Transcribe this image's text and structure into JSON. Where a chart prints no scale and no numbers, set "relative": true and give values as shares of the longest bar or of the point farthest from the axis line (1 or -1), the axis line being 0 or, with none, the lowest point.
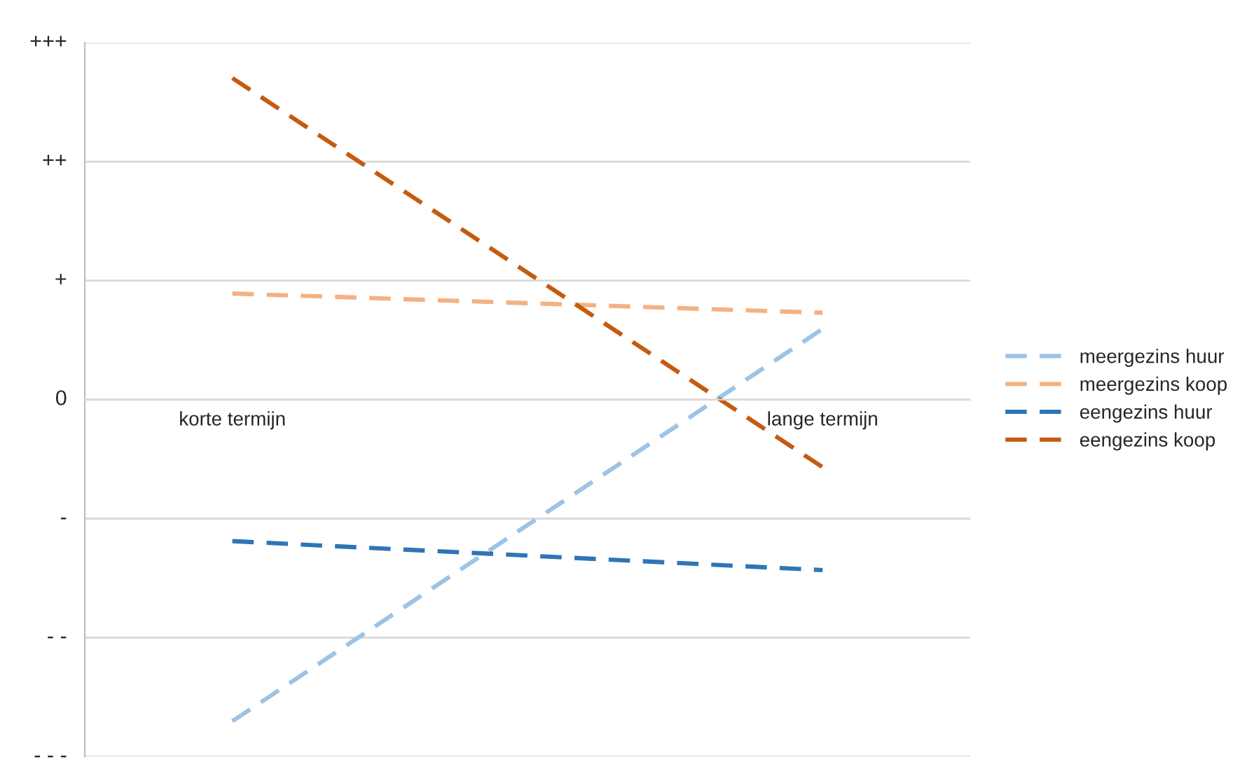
{
  "chart_data": {
    "type": "line",
    "categories": [
      "korte termijn",
      "lange termijn"
    ],
    "relative": true,
    "series": [
      {
        "name": "meergezins huur",
        "color": "#9dc3e6",
        "values": [
          -1,
          0.22
        ]
      },
      {
        "name": "meergezins koop",
        "color": "#f4b183",
        "values": [
          0.33,
          0.27
        ]
      },
      {
        "name": "eengezins huur",
        "color": "#2e75b6",
        "values": [
          -0.44,
          -0.53
        ]
      },
      {
        "name": "eengezins koop",
        "color": "#c55a11",
        "values": [
          1,
          -0.21
        ]
      }
    ],
    "annotations": [
      "+++",
      "++",
      "+",
      "0",
      "-",
      "- -",
      "- - -"
    ],
    "grid": "y",
    "legend": "right",
    "line_style": "dashed",
    "marker": "none"
  }
}
